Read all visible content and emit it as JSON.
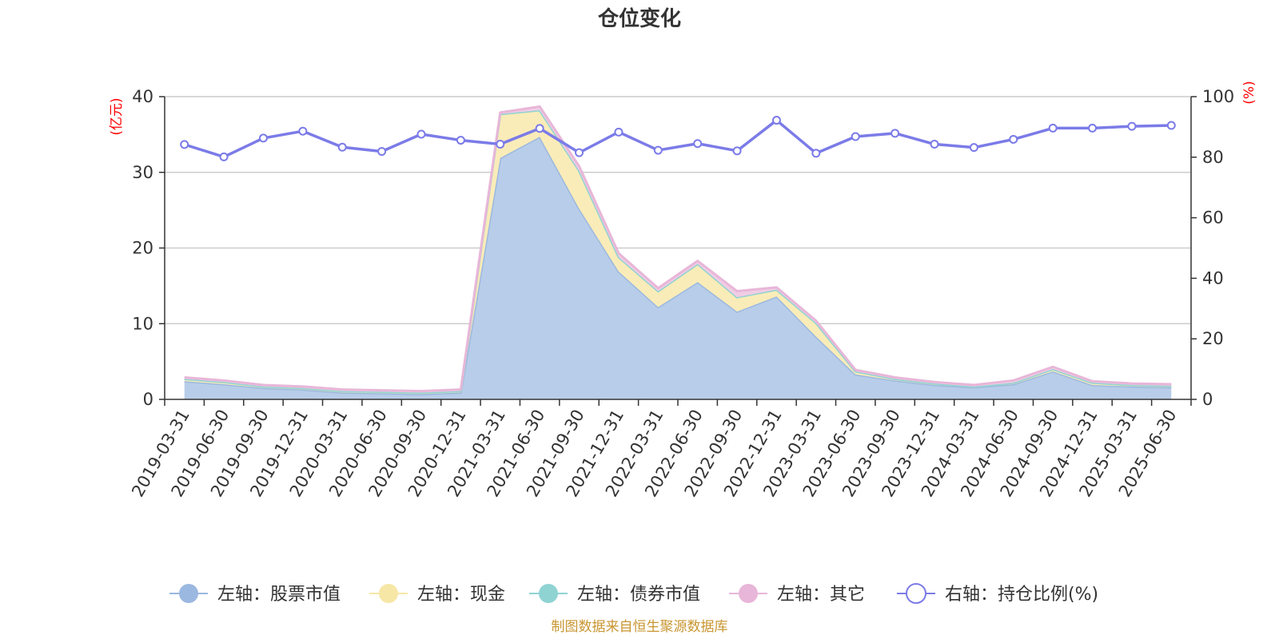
{
  "chart_data": {
    "type": "area",
    "title": "仓位变化",
    "left_axis": {
      "unit": "(亿元)",
      "ylim": [
        0,
        40
      ],
      "ticks": [
        "0",
        "10",
        "20",
        "30",
        "40"
      ]
    },
    "right_axis": {
      "unit": "(%)",
      "ylim": [
        0,
        100
      ],
      "ticks": [
        "0",
        "20",
        "40",
        "60",
        "80",
        "100"
      ]
    },
    "categories": [
      "2019-03-31",
      "2019-06-30",
      "2019-09-30",
      "2019-12-31",
      "2020-03-31",
      "2020-06-30",
      "2020-09-30",
      "2020-12-31",
      "2021-03-31",
      "2021-06-30",
      "2021-09-30",
      "2021-12-31",
      "2022-03-31",
      "2022-06-30",
      "2022-09-30",
      "2022-12-31",
      "2023-03-31",
      "2023-06-30",
      "2023-09-30",
      "2023-12-31",
      "2024-03-31",
      "2024-06-30",
      "2024-09-30",
      "2024-12-31",
      "2025-03-31",
      "2025-06-30"
    ],
    "series": [
      {
        "name": "左轴：股票市值",
        "axis": "left",
        "stacked": true,
        "color": "#9bb8e0",
        "fill": "#b8cde9",
        "values": [
          2.4,
          2.0,
          1.5,
          1.3,
          0.9,
          0.8,
          0.7,
          0.9,
          31.9,
          34.7,
          25.2,
          16.9,
          12.2,
          15.5,
          11.6,
          13.6,
          8.3,
          3.3,
          2.5,
          1.9,
          1.6,
          2.0,
          3.7,
          1.9,
          1.7,
          1.6
        ]
      },
      {
        "name": "左轴：现金",
        "axis": "left",
        "stacked": true,
        "color": "#f7e7a6",
        "fill": "#faecb8",
        "values": [
          0.3,
          0.3,
          0.2,
          0.2,
          0.2,
          0.2,
          0.2,
          0.2,
          5.8,
          3.5,
          5.0,
          1.9,
          2.1,
          2.4,
          1.9,
          0.9,
          1.8,
          0.4,
          0.2,
          0.2,
          0.1,
          0.2,
          0.3,
          0.3,
          0.2,
          0.2
        ]
      },
      {
        "name": "左轴：债券市值",
        "axis": "left",
        "stacked": true,
        "color": "#8fd3d3",
        "fill": "#a7dcdc",
        "values": [
          0,
          0,
          0,
          0,
          0,
          0,
          0,
          0,
          0,
          0,
          0,
          0,
          0,
          0,
          0,
          0,
          0,
          0,
          0,
          0,
          0,
          0,
          0,
          0,
          0,
          0
        ]
      },
      {
        "name": "左轴：其它",
        "axis": "left",
        "stacked": true,
        "color": "#e8b6d8",
        "fill": "#f0cde4",
        "values": [
          0.2,
          0.2,
          0.2,
          0.2,
          0.2,
          0.2,
          0.2,
          0.2,
          0.2,
          0.5,
          0.6,
          0.5,
          0.4,
          0.4,
          0.8,
          0.3,
          0.3,
          0.2,
          0.2,
          0.2,
          0.2,
          0.3,
          0.3,
          0.2,
          0.2,
          0.2
        ]
      },
      {
        "name": "右轴：持仓比例(%)",
        "axis": "right",
        "stacked": false,
        "color": "#7b7be8",
        "values": [
          84.2,
          80.1,
          86.3,
          88.6,
          83.3,
          81.9,
          87.6,
          85.6,
          84.3,
          89.5,
          81.5,
          88.3,
          82.3,
          84.5,
          82.1,
          92.2,
          81.3,
          86.8,
          87.9,
          84.3,
          83.2,
          85.9,
          89.6,
          89.6,
          90.2,
          90.5
        ]
      }
    ],
    "legend_position": "bottom",
    "grid": true
  },
  "footer": {
    "source": "制图数据来自恒生聚源数据库"
  }
}
